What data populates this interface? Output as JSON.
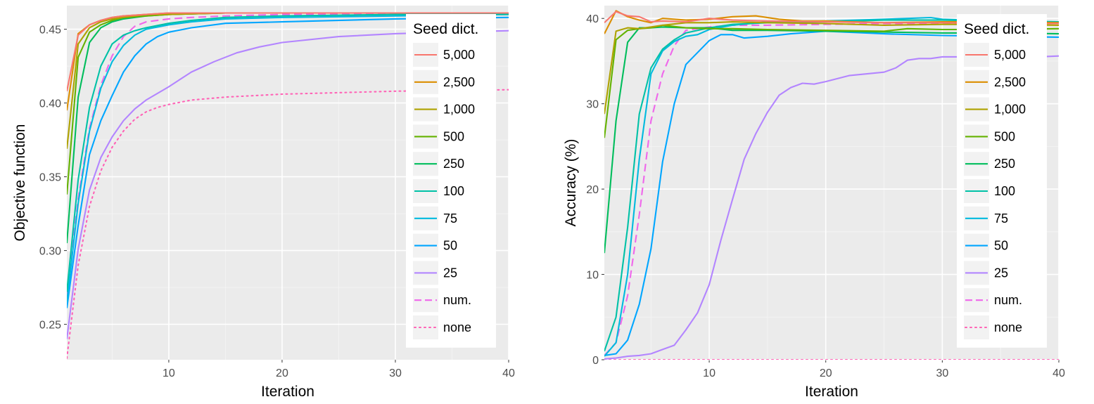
{
  "legend_title": "Seed dict.",
  "series_styles": [
    {
      "key": "5000",
      "label": "5,000",
      "color": "#F8766D",
      "dash": "solid"
    },
    {
      "key": "2500",
      "label": "2,500",
      "color": "#DB8E00",
      "dash": "solid"
    },
    {
      "key": "1000",
      "label": "1,000",
      "color": "#AEA200",
      "dash": "solid"
    },
    {
      "key": "500",
      "label": "500",
      "color": "#64B200",
      "dash": "solid"
    },
    {
      "key": "250",
      "label": "250",
      "color": "#00BD5C",
      "dash": "solid"
    },
    {
      "key": "100",
      "label": "100",
      "color": "#00C1A7",
      "dash": "solid"
    },
    {
      "key": "75",
      "label": "75",
      "color": "#00BADE",
      "dash": "solid"
    },
    {
      "key": "50",
      "label": "50",
      "color": "#00A6FF",
      "dash": "solid"
    },
    {
      "key": "25",
      "label": "25",
      "color": "#B385FF",
      "dash": "solid"
    },
    {
      "key": "num",
      "label": "num.",
      "color": "#EF67EB",
      "dash": "dashed"
    },
    {
      "key": "none",
      "label": "none",
      "color": "#FF63B6",
      "dash": "dotted"
    }
  ],
  "chart_data": [
    {
      "type": "line",
      "xlabel": "Iteration",
      "ylabel": "Objective function",
      "xlim": [
        1,
        40
      ],
      "ylim": [
        0.226,
        0.466
      ],
      "xticks": [
        10,
        20,
        30,
        40
      ],
      "yticks": [
        0.25,
        0.3,
        0.35,
        0.4,
        0.45
      ],
      "ytick_labels": [
        "0.25",
        "0.30",
        "0.35",
        "0.40",
        "0.45"
      ],
      "grid": true,
      "legend_position": "right",
      "series": [
        {
          "key": "5000",
          "x": [
            1,
            2,
            3,
            4,
            5,
            6,
            8,
            10,
            15,
            20,
            30,
            40
          ],
          "y": [
            0.408,
            0.446,
            0.453,
            0.456,
            0.458,
            0.459,
            0.46,
            0.461,
            0.461,
            0.461,
            0.461,
            0.461
          ]
        },
        {
          "key": "2500",
          "x": [
            1,
            2,
            3,
            4,
            5,
            6,
            8,
            10,
            15,
            20,
            30,
            40
          ],
          "y": [
            0.395,
            0.447,
            0.453,
            0.456,
            0.458,
            0.459,
            0.46,
            0.461,
            0.461,
            0.461,
            0.461,
            0.461
          ]
        },
        {
          "key": "1000",
          "x": [
            1,
            2,
            3,
            4,
            5,
            6,
            8,
            10,
            15,
            20,
            30,
            40
          ],
          "y": [
            0.369,
            0.44,
            0.451,
            0.455,
            0.457,
            0.458,
            0.46,
            0.46,
            0.461,
            0.461,
            0.461,
            0.461
          ]
        },
        {
          "key": "500",
          "x": [
            1,
            2,
            3,
            4,
            5,
            6,
            8,
            10,
            15,
            20,
            30,
            40
          ],
          "y": [
            0.338,
            0.431,
            0.448,
            0.453,
            0.456,
            0.458,
            0.459,
            0.46,
            0.461,
            0.461,
            0.461,
            0.461
          ]
        },
        {
          "key": "250",
          "x": [
            1,
            2,
            3,
            4,
            5,
            6,
            8,
            10,
            15,
            20,
            30,
            40
          ],
          "y": [
            0.305,
            0.404,
            0.441,
            0.451,
            0.455,
            0.457,
            0.459,
            0.46,
            0.461,
            0.461,
            0.461,
            0.461
          ]
        },
        {
          "key": "100",
          "x": [
            1,
            2,
            3,
            4,
            5,
            6,
            7,
            8,
            10,
            12,
            15,
            20,
            30,
            40
          ],
          "y": [
            0.272,
            0.348,
            0.397,
            0.425,
            0.44,
            0.446,
            0.449,
            0.451,
            0.454,
            0.456,
            0.458,
            0.459,
            0.46,
            0.46
          ]
        },
        {
          "key": "75",
          "x": [
            1,
            2,
            3,
            4,
            5,
            6,
            7,
            8,
            10,
            12,
            15,
            20,
            30,
            40
          ],
          "y": [
            0.265,
            0.332,
            0.381,
            0.41,
            0.428,
            0.439,
            0.446,
            0.45,
            0.453,
            0.455,
            0.457,
            0.458,
            0.459,
            0.46
          ]
        },
        {
          "key": "50",
          "x": [
            1,
            2,
            3,
            4,
            5,
            6,
            7,
            8,
            9,
            10,
            12,
            15,
            20,
            30,
            40
          ],
          "y": [
            0.261,
            0.317,
            0.365,
            0.388,
            0.405,
            0.421,
            0.432,
            0.44,
            0.445,
            0.448,
            0.451,
            0.454,
            0.455,
            0.457,
            0.458
          ]
        },
        {
          "key": "25",
          "x": [
            1,
            2,
            3,
            4,
            5,
            6,
            7,
            8,
            10,
            12,
            14,
            16,
            18,
            20,
            25,
            30,
            35,
            40
          ],
          "y": [
            0.24,
            0.301,
            0.341,
            0.363,
            0.377,
            0.388,
            0.396,
            0.402,
            0.411,
            0.421,
            0.428,
            0.434,
            0.438,
            0.441,
            0.445,
            0.447,
            0.448,
            0.449
          ]
        },
        {
          "key": "num",
          "x": [
            1,
            2,
            3,
            4,
            5,
            6,
            7,
            8,
            10,
            12,
            15,
            20,
            30,
            40
          ],
          "y": [
            0.27,
            0.335,
            0.383,
            0.412,
            0.432,
            0.445,
            0.452,
            0.455,
            0.457,
            0.458,
            0.459,
            0.46,
            0.46,
            0.46
          ]
        },
        {
          "key": "none",
          "x": [
            1,
            2,
            3,
            4,
            5,
            6,
            7,
            8,
            9,
            10,
            12,
            15,
            20,
            25,
            30,
            40
          ],
          "y": [
            0.227,
            0.29,
            0.33,
            0.354,
            0.37,
            0.381,
            0.389,
            0.394,
            0.397,
            0.399,
            0.402,
            0.404,
            0.406,
            0.407,
            0.408,
            0.409
          ]
        }
      ]
    },
    {
      "type": "line",
      "xlabel": "Iteration",
      "ylabel": "Accuracy (%)",
      "xlim": [
        1,
        40
      ],
      "ylim": [
        0,
        41.5
      ],
      "xticks": [
        10,
        20,
        30,
        40
      ],
      "yticks": [
        0,
        10,
        20,
        30,
        40
      ],
      "ytick_labels": [
        "0",
        "10",
        "20",
        "30",
        "40"
      ],
      "grid": true,
      "legend_position": "right",
      "series": [
        {
          "key": "5000",
          "x": [
            1,
            2,
            3,
            4,
            5,
            6,
            8,
            10,
            12,
            15,
            20,
            25,
            30,
            35,
            40
          ],
          "y": [
            39.5,
            40.8,
            40.3,
            40.2,
            39.6,
            39.7,
            39.6,
            40.0,
            39.8,
            39.7,
            39.6,
            39.5,
            39.5,
            39.4,
            39.4
          ]
        },
        {
          "key": "2500",
          "x": [
            1,
            2,
            3,
            4,
            5,
            6,
            8,
            10,
            12,
            14,
            16,
            18,
            20,
            25,
            30,
            35,
            40
          ],
          "y": [
            38.2,
            40.9,
            40.2,
            39.8,
            39.5,
            40.0,
            39.8,
            39.9,
            40.2,
            40.3,
            39.9,
            39.7,
            39.7,
            39.5,
            39.6,
            39.6,
            39.5
          ]
        },
        {
          "key": "1000",
          "x": [
            1,
            2,
            3,
            4,
            5,
            6,
            8,
            10,
            12,
            15,
            20,
            25,
            30,
            35,
            40
          ],
          "y": [
            28.8,
            38.5,
            38.9,
            38.8,
            39.0,
            39.2,
            39.5,
            39.5,
            39.6,
            39.5,
            39.4,
            39.2,
            39.3,
            39.3,
            39.2
          ]
        },
        {
          "key": "500",
          "x": [
            1,
            2,
            3,
            4,
            5,
            6,
            8,
            10,
            12,
            15,
            20,
            25,
            27,
            30,
            35,
            40
          ],
          "y": [
            26.0,
            37.5,
            38.6,
            38.8,
            38.9,
            39.2,
            38.9,
            38.8,
            38.8,
            38.7,
            38.6,
            38.5,
            38.8,
            38.7,
            38.7,
            38.8
          ]
        },
        {
          "key": "250",
          "x": [
            1,
            2,
            3,
            4,
            5,
            6,
            8,
            10,
            12,
            15,
            20,
            25,
            30,
            35,
            40
          ],
          "y": [
            12.5,
            28.0,
            37.2,
            38.9,
            38.9,
            39.0,
            38.9,
            38.9,
            38.6,
            38.6,
            38.5,
            38.4,
            38.3,
            38.3,
            38.2
          ]
        },
        {
          "key": "100",
          "x": [
            1,
            2,
            3,
            4,
            5,
            6,
            7,
            8,
            10,
            12,
            15,
            20,
            25,
            30,
            35,
            40
          ],
          "y": [
            1.0,
            5.0,
            15.5,
            28.8,
            34.2,
            36.4,
            37.5,
            38.3,
            38.9,
            39.3,
            39.5,
            39.6,
            39.8,
            39.8,
            39.7,
            39.6
          ]
        },
        {
          "key": "75",
          "x": [
            1,
            2,
            3,
            4,
            5,
            6,
            7,
            8,
            9,
            10,
            12,
            15,
            20,
            25,
            29,
            30,
            35,
            40
          ],
          "y": [
            0.4,
            2.0,
            10.0,
            23.5,
            33.5,
            36.2,
            37.3,
            37.9,
            38.1,
            38.7,
            39.2,
            39.6,
            39.7,
            39.9,
            40.1,
            39.9,
            39.7,
            39.6
          ]
        },
        {
          "key": "50",
          "x": [
            1,
            2,
            3,
            4,
            5,
            6,
            7,
            8,
            10,
            11,
            12,
            13,
            15,
            17,
            20,
            25,
            30,
            35,
            40
          ],
          "y": [
            0.5,
            0.7,
            2.3,
            6.5,
            13.0,
            23.2,
            30.0,
            34.6,
            37.4,
            38.1,
            38.1,
            37.7,
            37.9,
            38.2,
            38.5,
            38.2,
            38.0,
            37.9,
            37.8
          ]
        },
        {
          "key": "25",
          "x": [
            1,
            2,
            3,
            4,
            5,
            6,
            7,
            8,
            9,
            10,
            11,
            12,
            13,
            14,
            15,
            16,
            17,
            18,
            19,
            20,
            22,
            25,
            26,
            27,
            28,
            29,
            30,
            32,
            35,
            40
          ],
          "y": [
            0.1,
            0.2,
            0.4,
            0.5,
            0.7,
            1.2,
            1.7,
            3.5,
            5.5,
            8.8,
            14.0,
            18.8,
            23.5,
            26.5,
            29.0,
            31.0,
            31.9,
            32.4,
            32.3,
            32.6,
            33.3,
            33.7,
            34.2,
            35.1,
            35.3,
            35.3,
            35.5,
            35.5,
            35.3,
            35.6
          ]
        },
        {
          "key": "num",
          "x": [
            1,
            2,
            3,
            4,
            5,
            6,
            7,
            8,
            10,
            12,
            15,
            20,
            25,
            30,
            35,
            40
          ],
          "y": [
            0.5,
            2.0,
            7.5,
            17.0,
            28.0,
            33.5,
            36.8,
            38.6,
            39.0,
            39.2,
            39.2,
            39.3,
            39.4,
            39.4,
            39.4,
            39.4
          ]
        },
        {
          "key": "none",
          "x": [
            1,
            40
          ],
          "y": [
            0.0,
            0.0
          ]
        }
      ]
    }
  ]
}
